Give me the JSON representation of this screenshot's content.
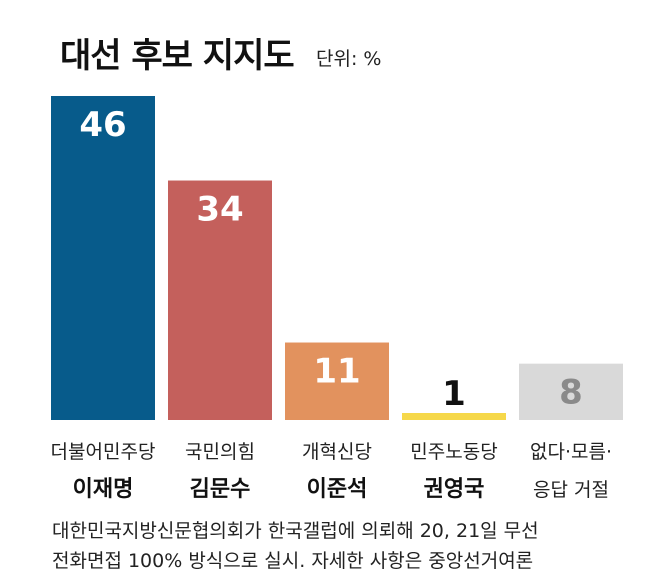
{
  "chart_data": {
    "type": "bar",
    "title": "대선 후보 지지도",
    "unit": "단위: %",
    "categories": [
      {
        "party": "더불어민주당",
        "candidate": "이재명"
      },
      {
        "party": "국민의힘",
        "candidate": "김문수"
      },
      {
        "party": "개혁신당",
        "candidate": "이준석"
      },
      {
        "party": "민주노동당",
        "candidate": "권영국"
      },
      {
        "party": "없다·모름·",
        "candidate": "응답 거절"
      }
    ],
    "values": [
      46,
      34,
      11,
      1,
      8
    ],
    "colors": [
      "#075b8b",
      "#c4605c",
      "#e2925e",
      "#f6d84a",
      "#d9d9d9"
    ],
    "label_colors": [
      "#ffffff",
      "#ffffff",
      "#ffffff",
      "#111111",
      "#8a8a8a"
    ],
    "candidate_bold": [
      true,
      true,
      true,
      true,
      false
    ],
    "ylim": [
      0,
      46
    ]
  },
  "footnote": [
    "대한민국지방신문협의회가 한국갤럽에 의뢰해 20, 21일 무선",
    "전화면접 100% 방식으로 실시. 자세한 사항은 중앙선거여론"
  ]
}
